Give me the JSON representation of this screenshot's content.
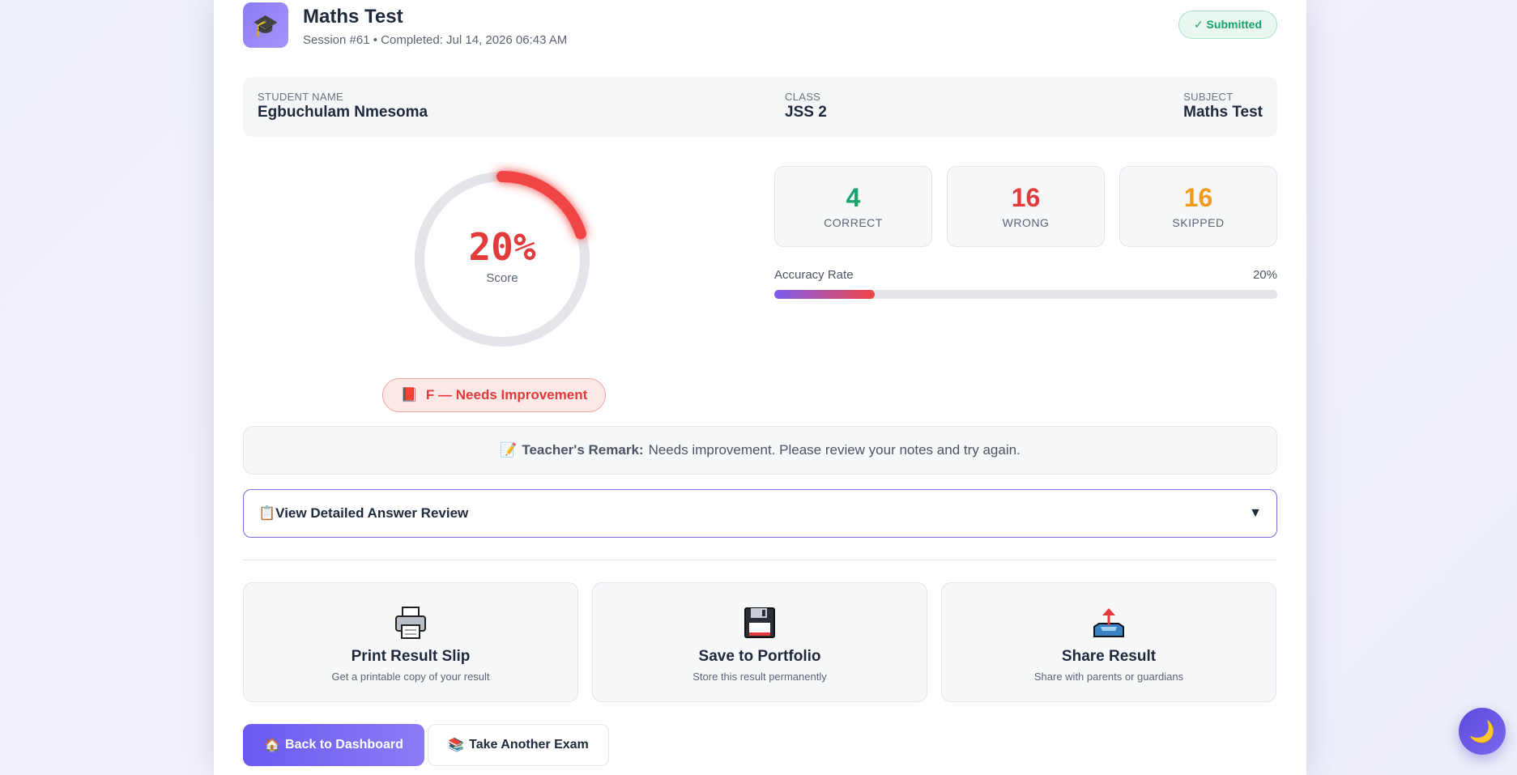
{
  "header": {
    "logo_icon": "🎓",
    "title": "Maths Test",
    "subtitle": "Session #61 • Completed: Jul 14, 2026 06:43 AM",
    "status": "✓ Submitted"
  },
  "info": {
    "student_label": "STUDENT NAME",
    "student_value": "Egbuchulam Nmesoma",
    "class_label": "CLASS",
    "class_value": "JSS 2",
    "subject_label": "SUBJECT",
    "subject_value": "Maths Test"
  },
  "score": {
    "value_text": "20%",
    "label": "Score",
    "fraction": 0.2,
    "color": "#e23b3b"
  },
  "grade": {
    "icon": "📕",
    "text": "F — Needs Improvement"
  },
  "stats": [
    {
      "value": "4",
      "label": "CORRECT",
      "color": "#17a36b"
    },
    {
      "value": "16",
      "label": "WRONG",
      "color": "#e23b3b"
    },
    {
      "value": "16",
      "label": "SKIPPED",
      "color": "#f29a1a"
    }
  ],
  "accuracy": {
    "label": "Accuracy Rate",
    "value_text": "20%",
    "fraction": 0.2
  },
  "remark": {
    "icon": "📝",
    "label": "Teacher's Remark:",
    "text": "Needs improvement. Please review your notes and try again."
  },
  "review": {
    "icon": "📋",
    "label": "View Detailed Answer Review",
    "arrow": "▼"
  },
  "actions": [
    {
      "icon": "printer-icon",
      "title": "Print Result Slip",
      "subtitle": "Get a printable copy of your result"
    },
    {
      "icon": "floppy-disk-icon",
      "title": "Save to Portfolio",
      "subtitle": "Store this result permanently"
    },
    {
      "icon": "share-tray-icon",
      "title": "Share Result",
      "subtitle": "Share with parents or guardians"
    }
  ],
  "buttons": {
    "back_icon": "🏠",
    "back_label": "Back to Dashboard",
    "another_icon": "📚",
    "another_label": "Take Another Exam"
  },
  "dark_toggle_icon": "🌙"
}
